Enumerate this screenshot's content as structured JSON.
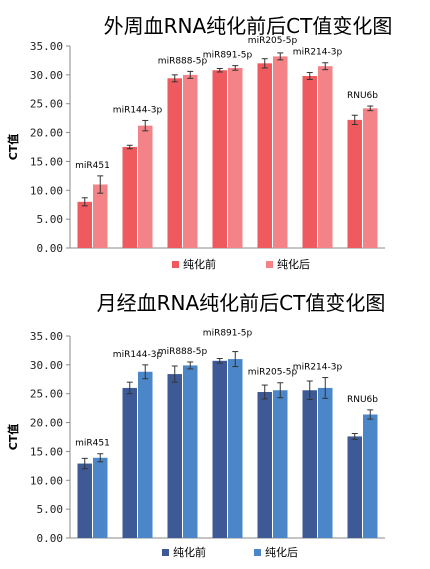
{
  "chart_data": [
    {
      "type": "bar",
      "title": "外周血RNA纯化前后CT值变化图",
      "ylabel": "CT值",
      "ylim": [
        0,
        35
      ],
      "yticks": [
        "0.00",
        "5.00",
        "10.00",
        "15.00",
        "20.00",
        "25.00",
        "30.00",
        "35.00"
      ],
      "categories": [
        "miR451",
        "miR144-3p",
        "miR888-5p",
        "miR891-5p",
        "miR205-5p",
        "miR214-3p",
        "RNU6b"
      ],
      "series": [
        {
          "name": "纯化前",
          "color": "#ee5a5d",
          "values": [
            8.0,
            17.5,
            29.4,
            30.8,
            32.0,
            29.8,
            22.2
          ],
          "errors": [
            0.7,
            0.3,
            0.6,
            0.3,
            0.8,
            0.6,
            0.8
          ]
        },
        {
          "name": "纯化后",
          "color": "#f48387",
          "values": [
            11.0,
            21.2,
            30.0,
            31.2,
            33.2,
            31.5,
            24.2
          ],
          "errors": [
            1.5,
            0.9,
            0.6,
            0.4,
            0.6,
            0.6,
            0.4
          ]
        }
      ],
      "legend_position": "bottom"
    },
    {
      "type": "bar",
      "title": "月经血RNA纯化前后CT值变化图",
      "ylabel": "CT值",
      "ylim": [
        0,
        35
      ],
      "yticks": [
        "0.00",
        "5.00",
        "10.00",
        "15.00",
        "20.00",
        "25.00",
        "30.00",
        "35.00"
      ],
      "categories": [
        "miR451",
        "miR144-3p",
        "miR888-5p",
        "miR891-5p",
        "miR205-5p",
        "miR214-3p",
        "RNU6b"
      ],
      "series": [
        {
          "name": "纯化前",
          "color": "#3d5a96",
          "values": [
            12.9,
            26.0,
            28.4,
            30.7,
            25.3,
            25.6,
            17.6
          ],
          "errors": [
            0.9,
            1.0,
            1.4,
            0.4,
            1.2,
            1.6,
            0.5
          ]
        },
        {
          "name": "纯化后",
          "color": "#4a86c8",
          "values": [
            13.9,
            28.8,
            29.9,
            31.0,
            25.6,
            26.0,
            21.4
          ],
          "errors": [
            0.7,
            1.2,
            0.6,
            1.3,
            1.3,
            1.8,
            0.8
          ]
        }
      ],
      "legend_position": "bottom"
    }
  ]
}
